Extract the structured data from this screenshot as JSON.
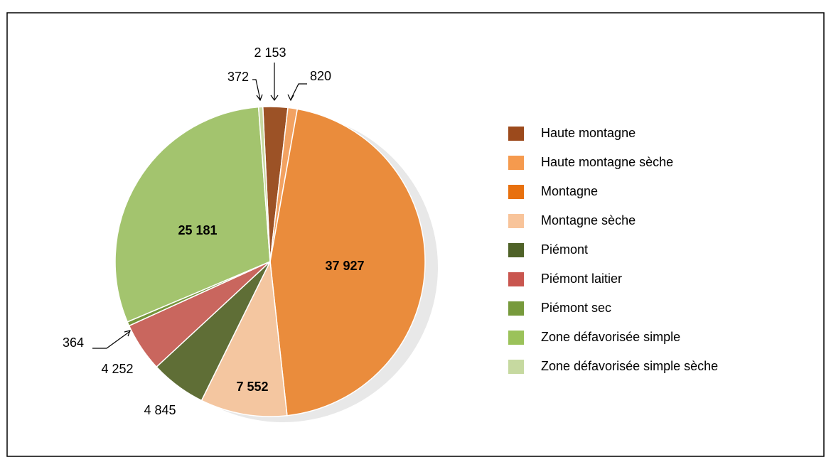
{
  "chart_data": {
    "type": "pie",
    "categories": [
      "Haute montagne",
      "Haute montagne sèche",
      "Montagne",
      "Montagne sèche",
      "Piémont",
      "Piémont laitier",
      "Piémont sec",
      "Zone défavorisée simple",
      "Zone défavorisée simple sèche"
    ],
    "values": [
      2153,
      820,
      37927,
      7552,
      4845,
      4252,
      364,
      25181,
      372
    ],
    "value_labels": [
      "2 153",
      "820",
      "37 927",
      "7 552",
      "4 845",
      "4 252",
      "364",
      "25 181",
      "372"
    ],
    "colors": [
      "#9c5226",
      "#f2a262",
      "#ea8c3c",
      "#f4c6a0",
      "#5f6e36",
      "#c9665e",
      "#76963c",
      "#a3c46e",
      "#c8d8a0"
    ],
    "legend_colors": [
      "#9c4a1c",
      "#f59a4e",
      "#e8700e",
      "#f8c49a",
      "#4f6228",
      "#c9564f",
      "#779a3c",
      "#9bc25a",
      "#c6d9a0"
    ]
  }
}
